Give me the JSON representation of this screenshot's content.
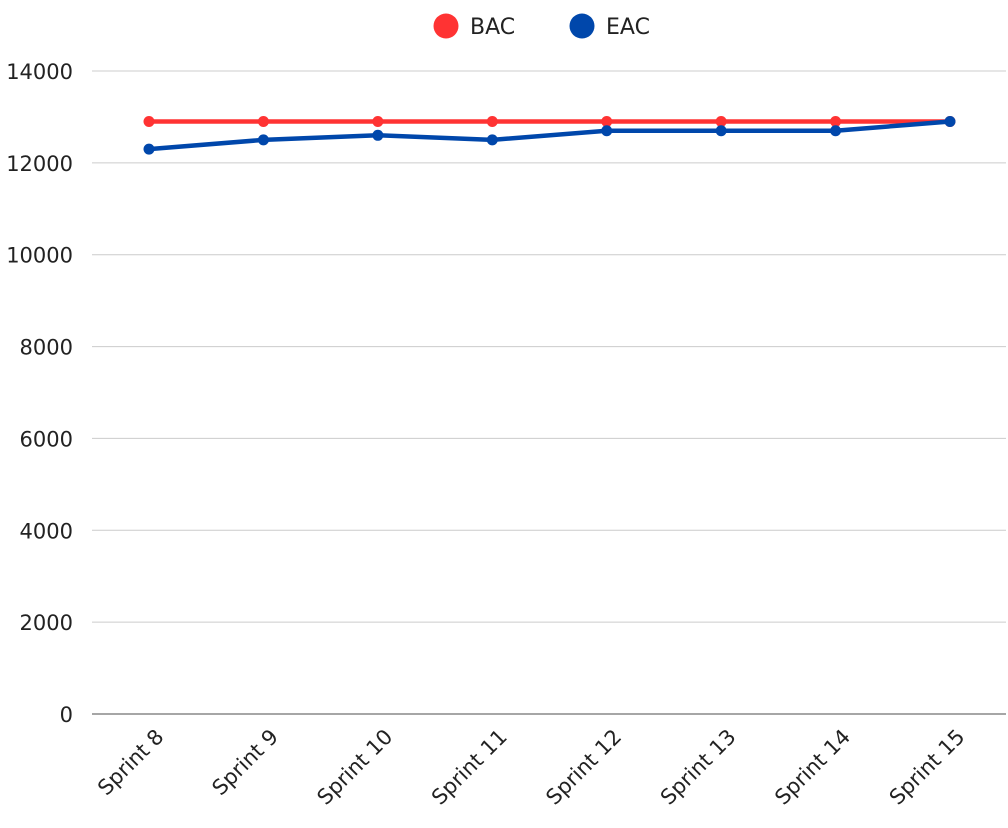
{
  "chart_data": {
    "type": "line",
    "title": "",
    "xlabel": "",
    "ylabel": "",
    "categories": [
      "Sprint 8",
      "Sprint 9",
      "Sprint 10",
      "Sprint 11",
      "Sprint 12",
      "Sprint 13",
      "Sprint 14",
      "Sprint 15"
    ],
    "ylim": [
      0,
      14000
    ],
    "yticks": [
      0,
      2000,
      4000,
      6000,
      8000,
      10000,
      12000,
      14000
    ],
    "grid": true,
    "legend_position": "top-center",
    "series": [
      {
        "name": "BAC",
        "color": "#ff3333",
        "values": [
          12900,
          12900,
          12900,
          12900,
          12900,
          12900,
          12900,
          12900
        ]
      },
      {
        "name": "EAC",
        "color": "#0047ab",
        "values": [
          12300,
          12500,
          12600,
          12500,
          12700,
          12700,
          12700,
          12900
        ]
      }
    ]
  }
}
